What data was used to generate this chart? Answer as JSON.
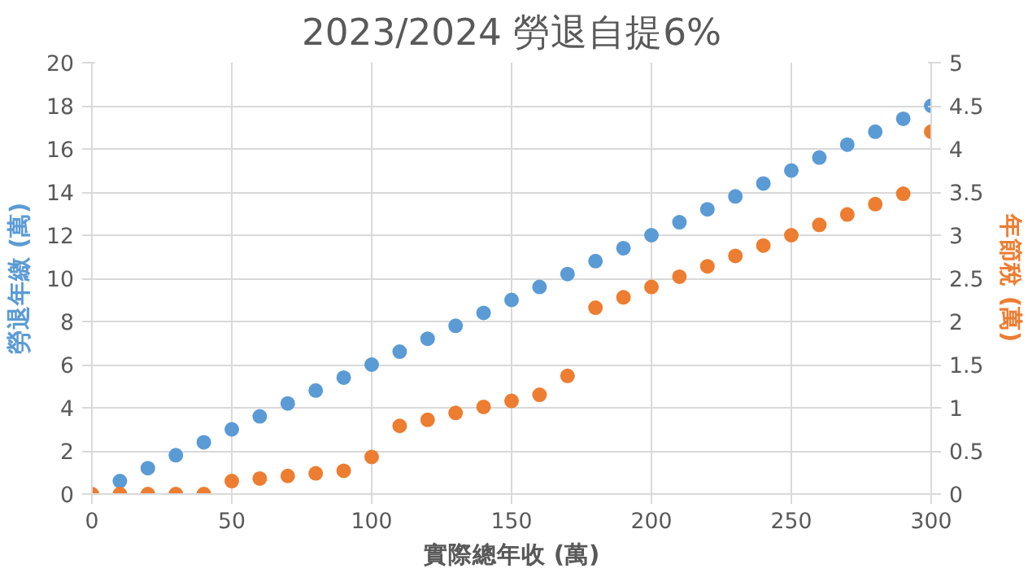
{
  "chart_data": {
    "type": "scatter",
    "title": "2023/2024 勞退自提6%",
    "xlabel": "實際總年收 (萬)",
    "ylabel": "勞退年繳 (萬)",
    "y2label": "年節稅 (萬)",
    "x": [
      0,
      10,
      20,
      30,
      40,
      50,
      60,
      70,
      80,
      90,
      100,
      110,
      120,
      130,
      140,
      150,
      160,
      170,
      180,
      190,
      200,
      210,
      220,
      230,
      240,
      250,
      260,
      270,
      280,
      290,
      300
    ],
    "series": [
      {
        "color": "#5b9bd5",
        "values": [
          null,
          0.6,
          1.2,
          1.8,
          2.4,
          3,
          3.6,
          4.2,
          4.8,
          5.4,
          6,
          6.6,
          7.2,
          7.8,
          8.4,
          9,
          9.6,
          10.2,
          10.8,
          11.4,
          12,
          12.6,
          13.2,
          13.8,
          14.4,
          15,
          15.6,
          16.2,
          16.8,
          17.4,
          18
        ]
      },
      {
        "color": "#ed7d31",
        "axis": "y2",
        "values": [
          0,
          0,
          0,
          0,
          0,
          0.15,
          0.18,
          0.21,
          0.24,
          0.27,
          0.43,
          0.79,
          0.86,
          0.94,
          1.01,
          1.08,
          1.15,
          1.37,
          2.16,
          2.28,
          2.4,
          2.52,
          2.64,
          2.76,
          2.88,
          3,
          3.12,
          3.24,
          3.36,
          3.48,
          4.2
        ]
      }
    ],
    "xlim": [
      0,
      300
    ],
    "xticks": [
      0,
      50,
      100,
      150,
      200,
      250,
      300
    ],
    "ylim": [
      0,
      20
    ],
    "yticks": [
      0,
      2,
      4,
      6,
      8,
      10,
      12,
      14,
      16,
      18,
      20
    ],
    "y2lim": [
      0,
      5
    ],
    "y2ticks": [
      0,
      {
        "value": 0.5,
        "label": "0.5"
      },
      1,
      {
        "value": 1.5,
        "label": "1.5"
      },
      2,
      {
        "value": 2.5,
        "label": "2.5"
      },
      3,
      {
        "value": 3.5,
        "label": "3.5"
      },
      4,
      {
        "value": 4.5,
        "label": "4.5"
      },
      5
    ],
    "grid": true,
    "marker": "circle"
  }
}
